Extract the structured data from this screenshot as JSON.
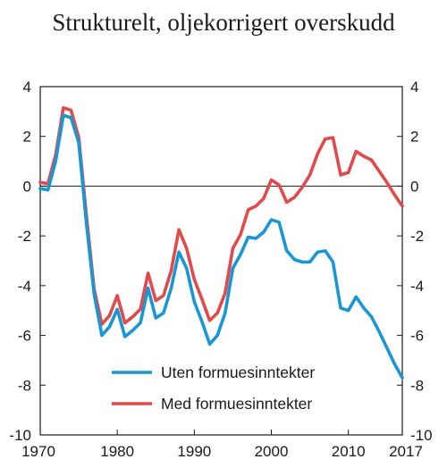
{
  "chart_data": {
    "type": "line",
    "title": "Strukturelt, oljekorrigert overskudd",
    "xlabel": "",
    "ylabel": "",
    "xlim": [
      1970,
      2017
    ],
    "ylim": [
      -10,
      4
    ],
    "x_ticks": [
      "1970",
      "1980",
      "1990",
      "2000",
      "2010",
      "2017"
    ],
    "y_ticks": [
      "4",
      "2",
      "0",
      "-2",
      "-4",
      "-6",
      "-8",
      "-10"
    ],
    "y_ticks_right": [
      "4",
      "2",
      "0",
      "-2",
      "-4",
      "-6",
      "-8",
      "-10"
    ],
    "zero_line": true,
    "grid": false,
    "legend_position": "bottom-center",
    "x": [
      1970,
      1971,
      1972,
      1973,
      1974,
      1975,
      1976,
      1977,
      1978,
      1979,
      1980,
      1981,
      1982,
      1983,
      1984,
      1985,
      1986,
      1987,
      1988,
      1989,
      1990,
      1991,
      1992,
      1993,
      1994,
      1995,
      1996,
      1997,
      1998,
      1999,
      2000,
      2001,
      2002,
      2003,
      2004,
      2005,
      2006,
      2007,
      2008,
      2009,
      2010,
      2011,
      2012,
      2013,
      2014,
      2015,
      2016,
      2017
    ],
    "series": [
      {
        "name": "Uten formuesinntekter",
        "color": "#1a96d4",
        "values": [
          -0.1,
          -0.15,
          1.0,
          2.85,
          2.75,
          1.75,
          -1.5,
          -4.35,
          -6.0,
          -5.65,
          -4.95,
          -6.05,
          -5.8,
          -5.5,
          -4.1,
          -5.3,
          -5.1,
          -4.1,
          -2.65,
          -3.3,
          -4.65,
          -5.45,
          -6.35,
          -6.0,
          -5.1,
          -3.3,
          -2.75,
          -2.05,
          -2.1,
          -1.85,
          -1.35,
          -1.45,
          -2.6,
          -2.95,
          -3.05,
          -3.05,
          -2.65,
          -2.6,
          -3.05,
          -4.9,
          -5.0,
          -4.45,
          -4.9,
          -5.25,
          -5.85,
          -6.5,
          -7.15,
          -7.7
        ]
      },
      {
        "name": "Med formuesinntekter",
        "color": "#e04a4a",
        "values": [
          0.15,
          0.1,
          1.25,
          3.15,
          3.05,
          1.95,
          -1.2,
          -4.15,
          -5.55,
          -5.2,
          -4.4,
          -5.5,
          -5.25,
          -4.95,
          -3.5,
          -4.6,
          -4.4,
          -3.4,
          -1.75,
          -2.5,
          -3.75,
          -4.55,
          -5.4,
          -5.1,
          -4.3,
          -2.5,
          -1.95,
          -0.95,
          -0.8,
          -0.5,
          0.25,
          0.05,
          -0.65,
          -0.45,
          -0.05,
          0.45,
          1.3,
          1.9,
          1.95,
          0.45,
          0.55,
          1.4,
          1.2,
          1.05,
          0.6,
          0.15,
          -0.35,
          -0.8
        ]
      }
    ]
  }
}
